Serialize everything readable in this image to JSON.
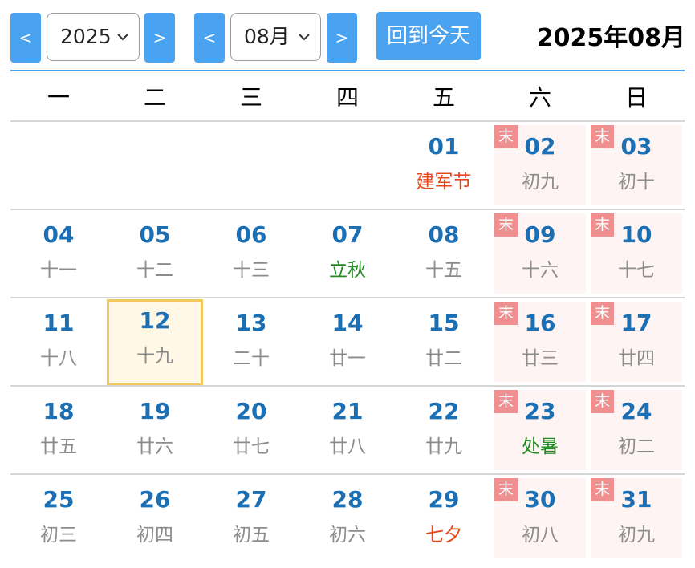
{
  "toolbar": {
    "prev_year": "<",
    "next_year": ">",
    "year_value": "2025",
    "prev_month": "<",
    "next_month": ">",
    "month_value": "08月",
    "today_button": "回到今天",
    "title": "2025年08月"
  },
  "weekdays": [
    "一",
    "二",
    "三",
    "四",
    "五",
    "六",
    "日"
  ],
  "weekend_badge": "末",
  "weeks": [
    [
      null,
      null,
      null,
      null,
      {
        "day": "01",
        "sub": "建军节",
        "kind": "festival"
      },
      {
        "day": "02",
        "sub": "初九",
        "kind": "lunar"
      },
      {
        "day": "03",
        "sub": "初十",
        "kind": "lunar"
      }
    ],
    [
      {
        "day": "04",
        "sub": "十一",
        "kind": "lunar"
      },
      {
        "day": "05",
        "sub": "十二",
        "kind": "lunar"
      },
      {
        "day": "06",
        "sub": "十三",
        "kind": "lunar"
      },
      {
        "day": "07",
        "sub": "立秋",
        "kind": "term"
      },
      {
        "day": "08",
        "sub": "十五",
        "kind": "lunar"
      },
      {
        "day": "09",
        "sub": "十六",
        "kind": "lunar"
      },
      {
        "day": "10",
        "sub": "十七",
        "kind": "lunar"
      }
    ],
    [
      {
        "day": "11",
        "sub": "十八",
        "kind": "lunar"
      },
      {
        "day": "12",
        "sub": "十九",
        "kind": "lunar",
        "today": true
      },
      {
        "day": "13",
        "sub": "二十",
        "kind": "lunar"
      },
      {
        "day": "14",
        "sub": "廿一",
        "kind": "lunar"
      },
      {
        "day": "15",
        "sub": "廿二",
        "kind": "lunar"
      },
      {
        "day": "16",
        "sub": "廿三",
        "kind": "lunar"
      },
      {
        "day": "17",
        "sub": "廿四",
        "kind": "lunar"
      }
    ],
    [
      {
        "day": "18",
        "sub": "廿五",
        "kind": "lunar"
      },
      {
        "day": "19",
        "sub": "廿六",
        "kind": "lunar"
      },
      {
        "day": "20",
        "sub": "廿七",
        "kind": "lunar"
      },
      {
        "day": "21",
        "sub": "廿八",
        "kind": "lunar"
      },
      {
        "day": "22",
        "sub": "廿九",
        "kind": "lunar"
      },
      {
        "day": "23",
        "sub": "处暑",
        "kind": "term"
      },
      {
        "day": "24",
        "sub": "初二",
        "kind": "lunar"
      }
    ],
    [
      {
        "day": "25",
        "sub": "初三",
        "kind": "lunar"
      },
      {
        "day": "26",
        "sub": "初四",
        "kind": "lunar"
      },
      {
        "day": "27",
        "sub": "初五",
        "kind": "lunar"
      },
      {
        "day": "28",
        "sub": "初六",
        "kind": "lunar"
      },
      {
        "day": "29",
        "sub": "七夕",
        "kind": "festival"
      },
      {
        "day": "30",
        "sub": "初八",
        "kind": "lunar"
      },
      {
        "day": "31",
        "sub": "初九",
        "kind": "lunar"
      }
    ]
  ]
}
